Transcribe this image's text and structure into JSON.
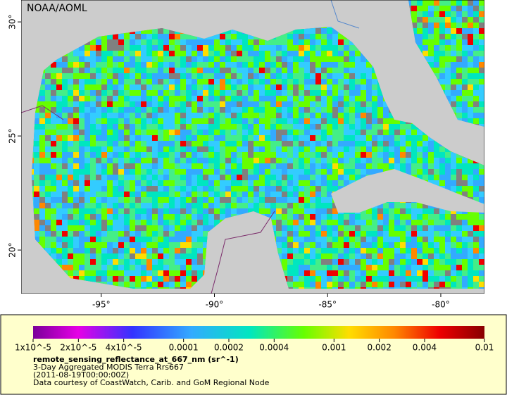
{
  "map": {
    "credit": "NOAA/AOML",
    "xlim": [
      -98.54,
      -78.07
    ],
    "ylim": [
      18.09,
      30.96
    ],
    "xticks": [
      {
        "value": -95,
        "label": "-95°"
      },
      {
        "value": -90,
        "label": "-90°"
      },
      {
        "value": -85,
        "label": "-85°"
      },
      {
        "value": -80,
        "label": "-80°"
      }
    ],
    "yticks": [
      {
        "value": 30,
        "label": "30°"
      },
      {
        "value": 25,
        "label": "25°"
      },
      {
        "value": 20,
        "label": "20°"
      }
    ]
  },
  "colorbar": {
    "log_scale": true,
    "lim": [
      1e-05,
      0.01
    ],
    "ticks": [
      {
        "value": 1e-05,
        "label": "1x10^-5"
      },
      {
        "value": 2e-05,
        "label": "2x10^-5"
      },
      {
        "value": 4e-05,
        "label": "4x10^-5"
      },
      0.0001,
      0.0002,
      0.0004,
      0.001,
      0.002,
      0.004,
      0.01
    ]
  },
  "legend": {
    "variable": "remote_sensing_reflectance_at_667_nm (sr^-1)",
    "product": "3-Day Aggregated MODIS Terra Rrs667",
    "time": "(2011-08-19T00:00:00Z)",
    "source": "Data courtesy of CoastWatch, Carib. and GoM Regional Node"
  }
}
